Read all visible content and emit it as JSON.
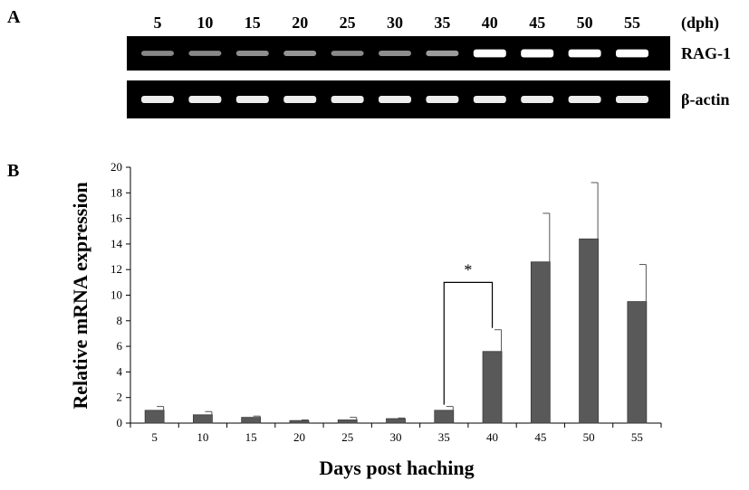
{
  "panels": {
    "a_label": "A",
    "b_label": "B"
  },
  "gel": {
    "lanes": [
      "5",
      "10",
      "15",
      "20",
      "25",
      "30",
      "35",
      "40",
      "45",
      "50",
      "55"
    ],
    "unit": "(dph)",
    "rows": [
      {
        "label": "RAG-1",
        "intensity": [
          0.35,
          0.35,
          0.38,
          0.42,
          0.36,
          0.38,
          0.45,
          0.95,
          1.0,
          0.95,
          0.95
        ]
      },
      {
        "label": "β-actin",
        "intensity": [
          0.85,
          0.85,
          0.85,
          0.85,
          0.85,
          0.85,
          0.85,
          0.85,
          0.85,
          0.85,
          0.85
        ]
      }
    ],
    "gel_color": "#000000",
    "band_color": "#ffffff"
  },
  "chart_data": {
    "type": "bar",
    "categories": [
      "5",
      "10",
      "15",
      "20",
      "25",
      "30",
      "35",
      "40",
      "45",
      "50",
      "55"
    ],
    "values": [
      1.0,
      0.65,
      0.45,
      0.2,
      0.25,
      0.35,
      1.0,
      5.6,
      12.6,
      14.4,
      9.5
    ],
    "errors": [
      0.3,
      0.25,
      0.1,
      0.05,
      0.2,
      0.05,
      0.3,
      1.7,
      3.8,
      4.4,
      2.9
    ],
    "xlabel": "Days post haching",
    "ylabel": "Relative mRNA expression",
    "ylim": [
      0,
      20
    ],
    "yticks": [
      "0",
      "2",
      "4",
      "6",
      "8",
      "10",
      "12",
      "14",
      "16",
      "18",
      "20"
    ],
    "bar_color": "#595959",
    "significance": {
      "from": "35",
      "to": "40",
      "label": "*"
    },
    "grid": false,
    "legend": "none"
  }
}
